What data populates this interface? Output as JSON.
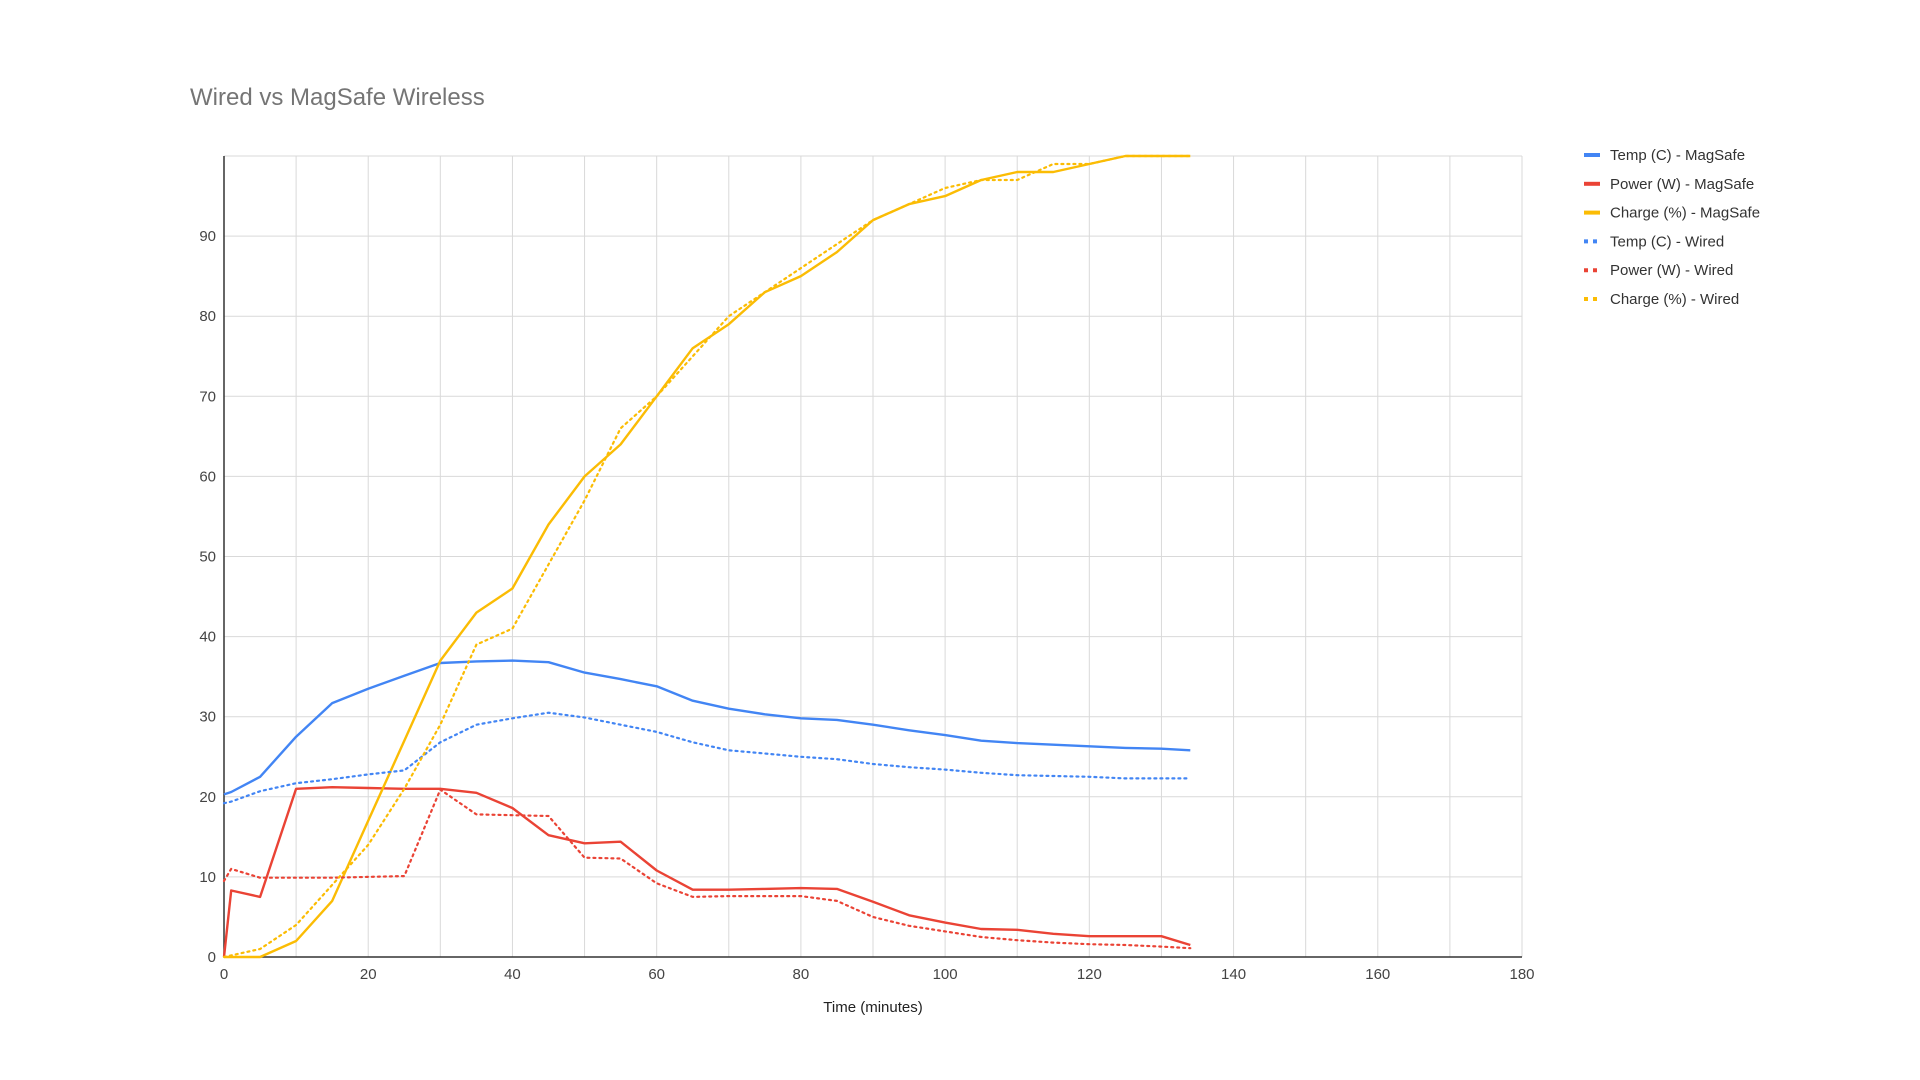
{
  "chart_data": {
    "type": "line",
    "title": "Wired vs MagSafe Wireless",
    "xlabel": "Time (minutes)",
    "ylabel": "",
    "xlim": [
      0,
      180
    ],
    "ylim": [
      0,
      100
    ],
    "x_ticks": [
      0,
      20,
      40,
      60,
      80,
      100,
      120,
      140,
      160,
      180
    ],
    "y_ticks": [
      0,
      10,
      20,
      30,
      40,
      50,
      60,
      70,
      80,
      90
    ],
    "grid": true,
    "legend_position": "right",
    "series": [
      {
        "name": "Temp (C) - MagSafe",
        "color": "#4285f4",
        "style": "solid",
        "points": [
          [
            0,
            20.3
          ],
          [
            1,
            20.6
          ],
          [
            5,
            22.5
          ],
          [
            10,
            27.5
          ],
          [
            15,
            31.7
          ],
          [
            20,
            33.5
          ],
          [
            25,
            35.1
          ],
          [
            30,
            36.7
          ],
          [
            35,
            36.9
          ],
          [
            40,
            37.0
          ],
          [
            45,
            36.8
          ],
          [
            50,
            35.5
          ],
          [
            55,
            34.7
          ],
          [
            60,
            33.8
          ],
          [
            65,
            32.0
          ],
          [
            70,
            31.0
          ],
          [
            75,
            30.3
          ],
          [
            80,
            29.8
          ],
          [
            85,
            29.6
          ],
          [
            90,
            29.0
          ],
          [
            95,
            28.3
          ],
          [
            100,
            27.7
          ],
          [
            105,
            27.0
          ],
          [
            110,
            26.7
          ],
          [
            115,
            26.5
          ],
          [
            120,
            26.3
          ],
          [
            125,
            26.1
          ],
          [
            130,
            26.0
          ],
          [
            134,
            25.8
          ]
        ]
      },
      {
        "name": "Power (W) - MagSafe",
        "color": "#ea4335",
        "style": "solid",
        "points": [
          [
            0,
            0
          ],
          [
            1,
            8.3
          ],
          [
            5,
            7.5
          ],
          [
            10,
            21.0
          ],
          [
            15,
            21.2
          ],
          [
            20,
            21.1
          ],
          [
            25,
            21.0
          ],
          [
            30,
            21.0
          ],
          [
            35,
            20.5
          ],
          [
            40,
            18.6
          ],
          [
            45,
            15.2
          ],
          [
            50,
            14.2
          ],
          [
            55,
            14.4
          ],
          [
            60,
            10.8
          ],
          [
            65,
            8.4
          ],
          [
            70,
            8.4
          ],
          [
            75,
            8.5
          ],
          [
            80,
            8.6
          ],
          [
            85,
            8.5
          ],
          [
            90,
            6.9
          ],
          [
            95,
            5.2
          ],
          [
            100,
            4.3
          ],
          [
            105,
            3.5
          ],
          [
            110,
            3.4
          ],
          [
            115,
            2.9
          ],
          [
            120,
            2.6
          ],
          [
            125,
            2.6
          ],
          [
            130,
            2.6
          ],
          [
            134,
            1.5
          ]
        ]
      },
      {
        "name": "Charge (%) - MagSafe",
        "color": "#fbbc04",
        "style": "solid",
        "points": [
          [
            0,
            0
          ],
          [
            5,
            0
          ],
          [
            10,
            2
          ],
          [
            15,
            7
          ],
          [
            20,
            17
          ],
          [
            25,
            27
          ],
          [
            30,
            37
          ],
          [
            35,
            43
          ],
          [
            40,
            46
          ],
          [
            45,
            54
          ],
          [
            50,
            60
          ],
          [
            55,
            64
          ],
          [
            60,
            70
          ],
          [
            65,
            76
          ],
          [
            70,
            79
          ],
          [
            75,
            83
          ],
          [
            80,
            85
          ],
          [
            85,
            88
          ],
          [
            90,
            92
          ],
          [
            95,
            94
          ],
          [
            100,
            95
          ],
          [
            105,
            97
          ],
          [
            110,
            98
          ],
          [
            115,
            98
          ],
          [
            120,
            99
          ],
          [
            125,
            100
          ],
          [
            130,
            100
          ],
          [
            134,
            100
          ]
        ]
      },
      {
        "name": "Temp (C) - Wired",
        "color": "#4285f4",
        "style": "dotted",
        "points": [
          [
            0,
            19.2
          ],
          [
            1,
            19.4
          ],
          [
            5,
            20.7
          ],
          [
            10,
            21.7
          ],
          [
            15,
            22.2
          ],
          [
            20,
            22.8
          ],
          [
            25,
            23.3
          ],
          [
            30,
            26.8
          ],
          [
            35,
            29.0
          ],
          [
            40,
            29.8
          ],
          [
            45,
            30.5
          ],
          [
            50,
            29.9
          ],
          [
            55,
            29.0
          ],
          [
            60,
            28.1
          ],
          [
            65,
            26.8
          ],
          [
            70,
            25.8
          ],
          [
            75,
            25.4
          ],
          [
            80,
            25.0
          ],
          [
            85,
            24.7
          ],
          [
            90,
            24.1
          ],
          [
            95,
            23.7
          ],
          [
            100,
            23.4
          ],
          [
            105,
            23.0
          ],
          [
            110,
            22.7
          ],
          [
            115,
            22.6
          ],
          [
            120,
            22.5
          ],
          [
            125,
            22.3
          ],
          [
            130,
            22.3
          ],
          [
            134,
            22.3
          ]
        ]
      },
      {
        "name": "Power (W) - Wired",
        "color": "#ea4335",
        "style": "dotted",
        "points": [
          [
            0,
            9.5
          ],
          [
            1,
            11.0
          ],
          [
            5,
            9.9
          ],
          [
            10,
            9.9
          ],
          [
            15,
            9.9
          ],
          [
            20,
            10.0
          ],
          [
            25,
            10.1
          ],
          [
            30,
            20.9
          ],
          [
            35,
            17.8
          ],
          [
            40,
            17.7
          ],
          [
            45,
            17.6
          ],
          [
            50,
            12.4
          ],
          [
            55,
            12.3
          ],
          [
            60,
            9.2
          ],
          [
            65,
            7.5
          ],
          [
            70,
            7.6
          ],
          [
            75,
            7.6
          ],
          [
            80,
            7.6
          ],
          [
            85,
            7.0
          ],
          [
            90,
            5.0
          ],
          [
            95,
            3.9
          ],
          [
            100,
            3.2
          ],
          [
            105,
            2.5
          ],
          [
            110,
            2.1
          ],
          [
            115,
            1.8
          ],
          [
            120,
            1.6
          ],
          [
            125,
            1.5
          ],
          [
            130,
            1.3
          ],
          [
            134,
            1.1
          ]
        ]
      },
      {
        "name": "Charge (%) - Wired",
        "color": "#fbbc04",
        "style": "dotted",
        "points": [
          [
            0,
            0
          ],
          [
            5,
            1
          ],
          [
            10,
            4
          ],
          [
            15,
            9
          ],
          [
            20,
            14
          ],
          [
            25,
            21
          ],
          [
            30,
            29
          ],
          [
            35,
            39
          ],
          [
            40,
            41
          ],
          [
            45,
            49
          ],
          [
            50,
            57
          ],
          [
            55,
            66
          ],
          [
            60,
            70
          ],
          [
            65,
            75
          ],
          [
            70,
            80
          ],
          [
            75,
            83
          ],
          [
            80,
            86
          ],
          [
            85,
            89
          ],
          [
            90,
            92
          ],
          [
            95,
            94
          ],
          [
            100,
            96
          ],
          [
            105,
            97
          ],
          [
            110,
            97
          ],
          [
            115,
            99
          ],
          [
            120,
            99
          ],
          [
            125,
            100
          ],
          [
            130,
            100
          ],
          [
            134,
            100
          ]
        ]
      }
    ]
  }
}
